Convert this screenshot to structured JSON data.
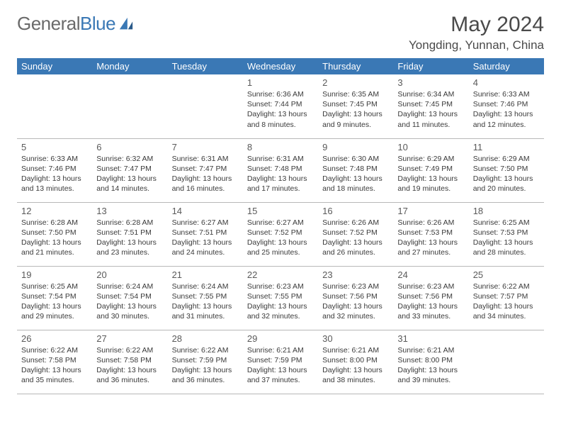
{
  "brand": {
    "part1": "General",
    "part2": "Blue"
  },
  "header": {
    "title": "May 2024",
    "location": "Yongding, Yunnan, China"
  },
  "colors": {
    "header_bg": "#3a78b5",
    "header_text": "#ffffff",
    "border": "#b8b8b8",
    "text": "#3a3a3a",
    "daynum": "#5a5a5a",
    "title": "#4a4a4a",
    "logo_gray": "#6a6a6a",
    "logo_blue": "#3a78b5"
  },
  "weekdays": [
    "Sunday",
    "Monday",
    "Tuesday",
    "Wednesday",
    "Thursday",
    "Friday",
    "Saturday"
  ],
  "weeks": [
    [
      null,
      null,
      null,
      {
        "n": "1",
        "sr": "Sunrise: 6:36 AM",
        "ss": "Sunset: 7:44 PM",
        "dl": "Daylight: 13 hours and 8 minutes."
      },
      {
        "n": "2",
        "sr": "Sunrise: 6:35 AM",
        "ss": "Sunset: 7:45 PM",
        "dl": "Daylight: 13 hours and 9 minutes."
      },
      {
        "n": "3",
        "sr": "Sunrise: 6:34 AM",
        "ss": "Sunset: 7:45 PM",
        "dl": "Daylight: 13 hours and 11 minutes."
      },
      {
        "n": "4",
        "sr": "Sunrise: 6:33 AM",
        "ss": "Sunset: 7:46 PM",
        "dl": "Daylight: 13 hours and 12 minutes."
      }
    ],
    [
      {
        "n": "5",
        "sr": "Sunrise: 6:33 AM",
        "ss": "Sunset: 7:46 PM",
        "dl": "Daylight: 13 hours and 13 minutes."
      },
      {
        "n": "6",
        "sr": "Sunrise: 6:32 AM",
        "ss": "Sunset: 7:47 PM",
        "dl": "Daylight: 13 hours and 14 minutes."
      },
      {
        "n": "7",
        "sr": "Sunrise: 6:31 AM",
        "ss": "Sunset: 7:47 PM",
        "dl": "Daylight: 13 hours and 16 minutes."
      },
      {
        "n": "8",
        "sr": "Sunrise: 6:31 AM",
        "ss": "Sunset: 7:48 PM",
        "dl": "Daylight: 13 hours and 17 minutes."
      },
      {
        "n": "9",
        "sr": "Sunrise: 6:30 AM",
        "ss": "Sunset: 7:48 PM",
        "dl": "Daylight: 13 hours and 18 minutes."
      },
      {
        "n": "10",
        "sr": "Sunrise: 6:29 AM",
        "ss": "Sunset: 7:49 PM",
        "dl": "Daylight: 13 hours and 19 minutes."
      },
      {
        "n": "11",
        "sr": "Sunrise: 6:29 AM",
        "ss": "Sunset: 7:50 PM",
        "dl": "Daylight: 13 hours and 20 minutes."
      }
    ],
    [
      {
        "n": "12",
        "sr": "Sunrise: 6:28 AM",
        "ss": "Sunset: 7:50 PM",
        "dl": "Daylight: 13 hours and 21 minutes."
      },
      {
        "n": "13",
        "sr": "Sunrise: 6:28 AM",
        "ss": "Sunset: 7:51 PM",
        "dl": "Daylight: 13 hours and 23 minutes."
      },
      {
        "n": "14",
        "sr": "Sunrise: 6:27 AM",
        "ss": "Sunset: 7:51 PM",
        "dl": "Daylight: 13 hours and 24 minutes."
      },
      {
        "n": "15",
        "sr": "Sunrise: 6:27 AM",
        "ss": "Sunset: 7:52 PM",
        "dl": "Daylight: 13 hours and 25 minutes."
      },
      {
        "n": "16",
        "sr": "Sunrise: 6:26 AM",
        "ss": "Sunset: 7:52 PM",
        "dl": "Daylight: 13 hours and 26 minutes."
      },
      {
        "n": "17",
        "sr": "Sunrise: 6:26 AM",
        "ss": "Sunset: 7:53 PM",
        "dl": "Daylight: 13 hours and 27 minutes."
      },
      {
        "n": "18",
        "sr": "Sunrise: 6:25 AM",
        "ss": "Sunset: 7:53 PM",
        "dl": "Daylight: 13 hours and 28 minutes."
      }
    ],
    [
      {
        "n": "19",
        "sr": "Sunrise: 6:25 AM",
        "ss": "Sunset: 7:54 PM",
        "dl": "Daylight: 13 hours and 29 minutes."
      },
      {
        "n": "20",
        "sr": "Sunrise: 6:24 AM",
        "ss": "Sunset: 7:54 PM",
        "dl": "Daylight: 13 hours and 30 minutes."
      },
      {
        "n": "21",
        "sr": "Sunrise: 6:24 AM",
        "ss": "Sunset: 7:55 PM",
        "dl": "Daylight: 13 hours and 31 minutes."
      },
      {
        "n": "22",
        "sr": "Sunrise: 6:23 AM",
        "ss": "Sunset: 7:55 PM",
        "dl": "Daylight: 13 hours and 32 minutes."
      },
      {
        "n": "23",
        "sr": "Sunrise: 6:23 AM",
        "ss": "Sunset: 7:56 PM",
        "dl": "Daylight: 13 hours and 32 minutes."
      },
      {
        "n": "24",
        "sr": "Sunrise: 6:23 AM",
        "ss": "Sunset: 7:56 PM",
        "dl": "Daylight: 13 hours and 33 minutes."
      },
      {
        "n": "25",
        "sr": "Sunrise: 6:22 AM",
        "ss": "Sunset: 7:57 PM",
        "dl": "Daylight: 13 hours and 34 minutes."
      }
    ],
    [
      {
        "n": "26",
        "sr": "Sunrise: 6:22 AM",
        "ss": "Sunset: 7:58 PM",
        "dl": "Daylight: 13 hours and 35 minutes."
      },
      {
        "n": "27",
        "sr": "Sunrise: 6:22 AM",
        "ss": "Sunset: 7:58 PM",
        "dl": "Daylight: 13 hours and 36 minutes."
      },
      {
        "n": "28",
        "sr": "Sunrise: 6:22 AM",
        "ss": "Sunset: 7:59 PM",
        "dl": "Daylight: 13 hours and 36 minutes."
      },
      {
        "n": "29",
        "sr": "Sunrise: 6:21 AM",
        "ss": "Sunset: 7:59 PM",
        "dl": "Daylight: 13 hours and 37 minutes."
      },
      {
        "n": "30",
        "sr": "Sunrise: 6:21 AM",
        "ss": "Sunset: 8:00 PM",
        "dl": "Daylight: 13 hours and 38 minutes."
      },
      {
        "n": "31",
        "sr": "Sunrise: 6:21 AM",
        "ss": "Sunset: 8:00 PM",
        "dl": "Daylight: 13 hours and 39 minutes."
      },
      null
    ]
  ]
}
